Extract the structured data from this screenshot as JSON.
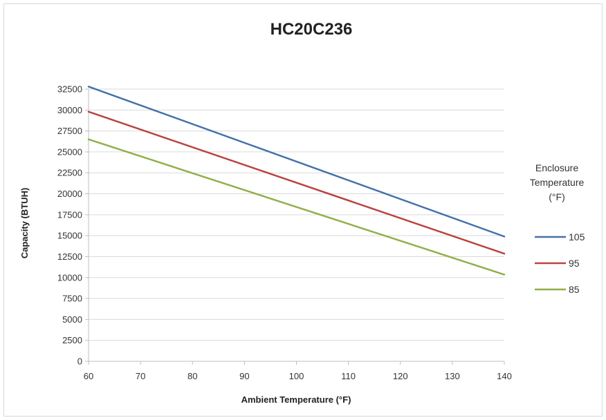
{
  "chart_data": {
    "type": "line",
    "title": "HC20C236",
    "xlabel": "Ambient Temperature (°F)",
    "ylabel": "Capacity (BTUH)",
    "xlim": [
      60,
      140
    ],
    "ylim": [
      0,
      32500
    ],
    "xticks": [
      60,
      70,
      80,
      90,
      100,
      110,
      120,
      130,
      140
    ],
    "yticks": [
      0,
      2500,
      5000,
      7500,
      10000,
      12500,
      15000,
      17500,
      20000,
      22500,
      25000,
      27500,
      30000,
      32500
    ],
    "grid": "horizontal",
    "legend": {
      "title": [
        "Enclosure",
        "Temperature",
        "(°F)"
      ],
      "placement": "right"
    },
    "series": [
      {
        "name": "105",
        "color": "#4472a8",
        "x": [
          60,
          140
        ],
        "y": [
          32800,
          14900
        ]
      },
      {
        "name": "95",
        "color": "#b94442",
        "x": [
          60,
          140
        ],
        "y": [
          29800,
          12850
        ]
      },
      {
        "name": "85",
        "color": "#8fb04a",
        "x": [
          60,
          140
        ],
        "y": [
          26500,
          10350
        ]
      }
    ]
  }
}
